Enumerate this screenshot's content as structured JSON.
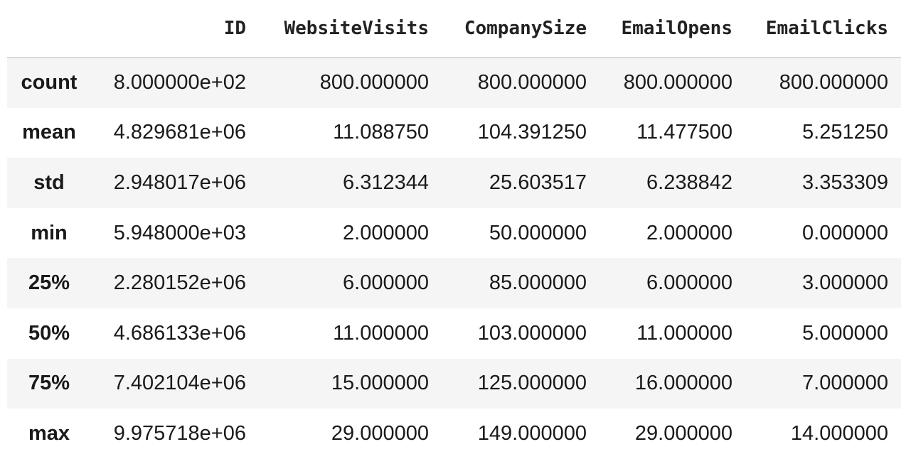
{
  "table": {
    "columns": [
      "",
      "ID",
      "WebsiteVisits",
      "CompanySize",
      "EmailOpens",
      "EmailClicks"
    ],
    "rows": [
      {
        "label": "count",
        "values": [
          "8.000000e+02",
          "800.000000",
          "800.000000",
          "800.000000",
          "800.000000"
        ]
      },
      {
        "label": "mean",
        "values": [
          "4.829681e+06",
          "11.088750",
          "104.391250",
          "11.477500",
          "5.251250"
        ]
      },
      {
        "label": "std",
        "values": [
          "2.948017e+06",
          "6.312344",
          "25.603517",
          "6.238842",
          "3.353309"
        ]
      },
      {
        "label": "min",
        "values": [
          "5.948000e+03",
          "2.000000",
          "50.000000",
          "2.000000",
          "0.000000"
        ]
      },
      {
        "label": "25%",
        "values": [
          "2.280152e+06",
          "6.000000",
          "85.000000",
          "6.000000",
          "3.000000"
        ]
      },
      {
        "label": "50%",
        "values": [
          "4.686133e+06",
          "11.000000",
          "103.000000",
          "11.000000",
          "5.000000"
        ]
      },
      {
        "label": "75%",
        "values": [
          "7.402104e+06",
          "15.000000",
          "125.000000",
          "16.000000",
          "7.000000"
        ]
      },
      {
        "label": "max",
        "values": [
          "9.975718e+06",
          "29.000000",
          "149.000000",
          "29.000000",
          "14.000000"
        ]
      }
    ]
  },
  "colors": {
    "stripe": "#f5f5f5",
    "header_border": "#d8d8d8",
    "text": "#1a1a1a"
  }
}
